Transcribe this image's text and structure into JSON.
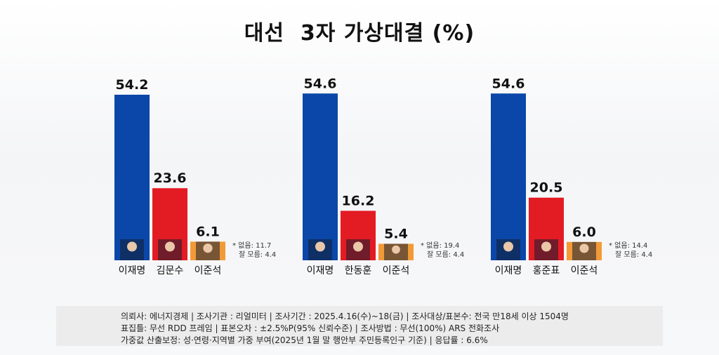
{
  "title": "대선  3자 가상대결 (%)",
  "chart_data": [
    {
      "type": "bar",
      "categories": [
        "이재명",
        "김문수",
        "이준석"
      ],
      "values": [
        54.2,
        23.6,
        6.1
      ],
      "value_labels": [
        "54.2",
        "23.6",
        "6.1"
      ],
      "colors": [
        "#0b47a8",
        "#e31b23",
        "#f29a38"
      ],
      "notes": [
        "* 없음: 11.7",
        "잘 모름: 4.4"
      ]
    },
    {
      "type": "bar",
      "categories": [
        "이재명",
        "한동훈",
        "이준석"
      ],
      "values": [
        54.6,
        16.2,
        5.4
      ],
      "value_labels": [
        "54.6",
        "16.2",
        "5.4"
      ],
      "colors": [
        "#0b47a8",
        "#e31b23",
        "#f29a38"
      ],
      "notes": [
        "* 없음: 19.4",
        "잘 모름: 4.4"
      ]
    },
    {
      "type": "bar",
      "categories": [
        "이재명",
        "홍준표",
        "이준석"
      ],
      "values": [
        54.6,
        20.5,
        6.0
      ],
      "value_labels": [
        "54.6",
        "20.5",
        "6.0"
      ],
      "colors": [
        "#0b47a8",
        "#e31b23",
        "#f29a38"
      ],
      "notes": [
        "* 없음: 14.4",
        "잘 모름: 4.4"
      ]
    }
  ],
  "footer": {
    "line1": "의뢰사: 에너지경제 | 조사기관 : 리얼미터  |  조사기간 : 2025.4.16(수)~18(금) | 조사대상/표본수: 전국 만18세 이상 1504명",
    "line2": "표집틀: 무선 RDD 프레임 | 표본오차 : ±2.5%P(95% 신뢰수준) | 조사방법 : 무선(100%) ARS 전화조사",
    "line3": "가중값 산출보정: 성·연령·지역별 가중 부여(2025년 1월 말 행안부 주민등록인구 기준) | 응답률 : 6.6%"
  }
}
